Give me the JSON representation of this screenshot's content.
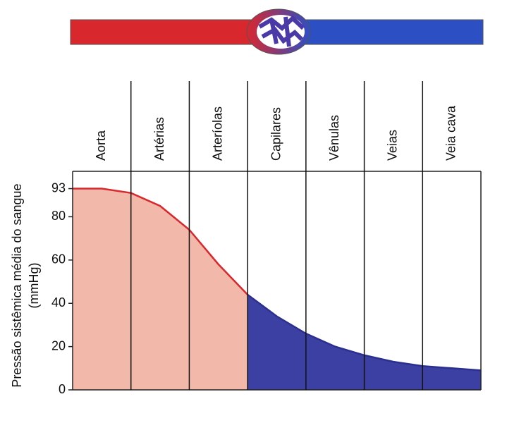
{
  "chart_data": {
    "type": "area",
    "categories": [
      "Aorta",
      "Artérias",
      "Arteríolas",
      "Capilares",
      "Vênulas",
      "Veias",
      "Veia cava"
    ],
    "ylabel": [
      "Pressão sistêmica média do sangue",
      "(mmHg)"
    ],
    "ylim": [
      0,
      101
    ],
    "yticks": [
      0,
      20,
      40,
      60,
      80,
      93
    ],
    "xlim": [
      0,
      7
    ],
    "series": [
      {
        "color": "#d9272e",
        "fill": "#f2b9aa",
        "x": [
          0,
          0.5,
          1,
          1.5,
          2,
          2.25,
          2.5,
          2.75,
          3
        ],
        "values": [
          93,
          93,
          91,
          85,
          74,
          66,
          58,
          51,
          44
        ]
      },
      {
        "color": "#2b2f8f",
        "fill": "#3c40a2",
        "x": [
          3,
          3.5,
          4,
          4.5,
          5,
          5.5,
          6,
          6.5,
          7
        ],
        "values": [
          44,
          34,
          26,
          20,
          16,
          13,
          11,
          10,
          9
        ]
      }
    ]
  }
}
